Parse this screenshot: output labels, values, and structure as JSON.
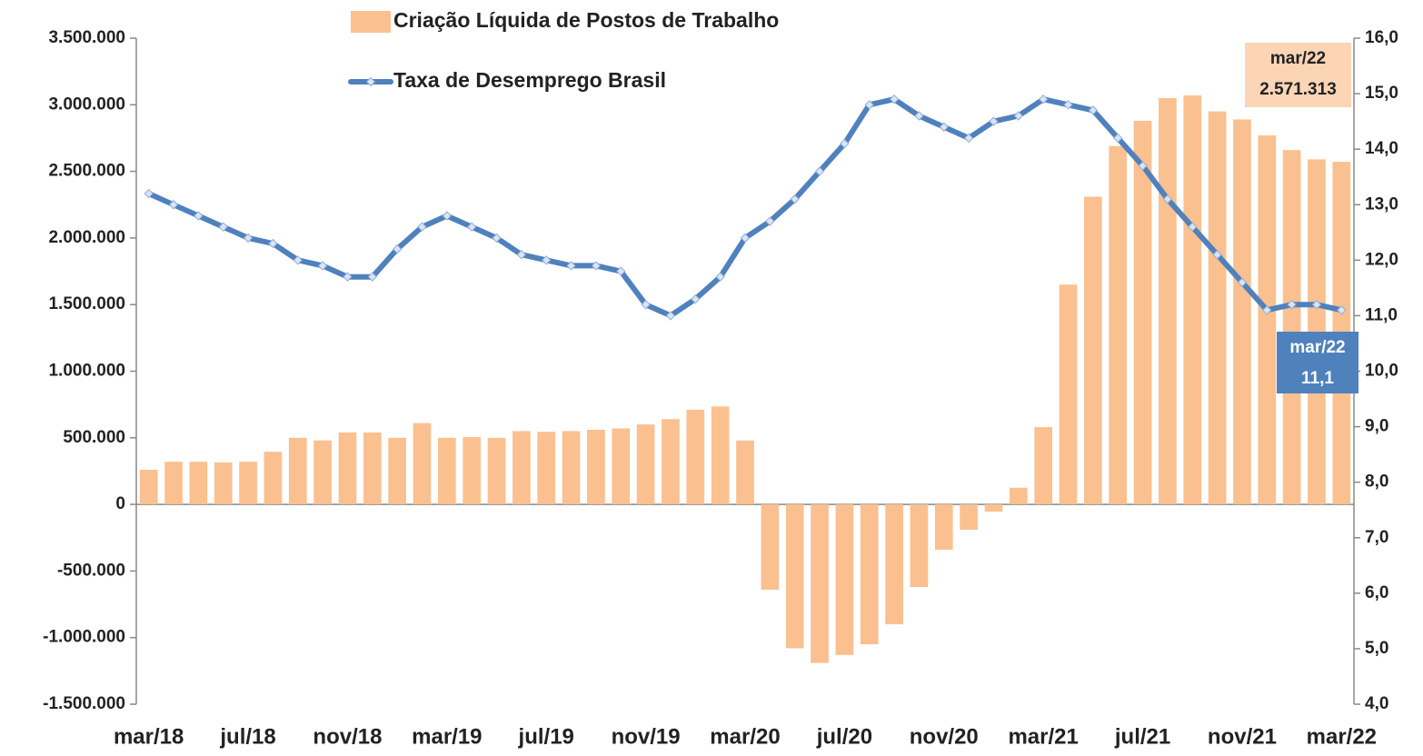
{
  "chart_data": {
    "type": "bar-line",
    "categories": [
      "mar/18",
      null,
      null,
      null,
      "jul/18",
      null,
      null,
      null,
      "nov/18",
      null,
      null,
      null,
      "mar/19",
      null,
      null,
      null,
      "jul/19",
      null,
      null,
      null,
      "nov/19",
      null,
      null,
      null,
      "mar/20",
      null,
      null,
      null,
      "jul/20",
      null,
      null,
      null,
      "nov/20",
      null,
      null,
      null,
      "mar/21",
      null,
      null,
      null,
      "jul/21",
      null,
      null,
      null,
      "nov/21",
      null,
      null,
      null,
      "mar/22"
    ],
    "series": [
      {
        "name": "Criação Líquida de Postos de Trabalho",
        "type": "bar",
        "color": "#fac090",
        "values": [
          260000,
          320000,
          320000,
          315000,
          320000,
          395000,
          500000,
          480000,
          540000,
          540000,
          500000,
          610000,
          500000,
          505000,
          500000,
          550000,
          545000,
          550000,
          560000,
          570000,
          600000,
          640000,
          710000,
          735000,
          480000,
          -640000,
          -1080000,
          -1190000,
          -1130000,
          -1050000,
          -900000,
          -620000,
          -340000,
          -190000,
          -55000,
          125000,
          580000,
          1650000,
          2310000,
          2690000,
          2880000,
          3050000,
          3070000,
          2950000,
          2890000,
          2770000,
          2660000,
          2590000,
          2571313
        ]
      },
      {
        "name": "Taxa de Desemprego Brasil",
        "type": "line",
        "color": "#4f81bd",
        "axis": "y2",
        "values": [
          13.2,
          13.0,
          12.8,
          12.6,
          12.4,
          12.3,
          12.0,
          11.9,
          11.7,
          11.7,
          12.2,
          12.6,
          12.8,
          12.6,
          12.4,
          12.1,
          12.0,
          11.9,
          11.9,
          11.8,
          11.2,
          11.0,
          11.3,
          11.7,
          12.4,
          12.7,
          13.1,
          13.6,
          14.1,
          14.8,
          14.9,
          14.6,
          14.4,
          14.2,
          14.5,
          14.6,
          14.9,
          14.8,
          14.7,
          14.2,
          13.7,
          13.1,
          12.6,
          12.1,
          11.6,
          11.1,
          11.2,
          11.2,
          11.1
        ]
      }
    ],
    "ylim": [
      -1500000,
      3500000
    ],
    "yticks": [
      {
        "value": -1500000,
        "label": "-1.500.000"
      },
      {
        "value": -1000000,
        "label": "-1.000.000"
      },
      {
        "value": -500000,
        "label": "-500.000"
      },
      0,
      {
        "value": 500000,
        "label": "500.000"
      },
      {
        "value": 1000000,
        "label": "1.000.000"
      },
      {
        "value": 1500000,
        "label": "1.500.000"
      },
      {
        "value": 2000000,
        "label": "2.000.000"
      },
      {
        "value": 2500000,
        "label": "2.500.000"
      },
      {
        "value": 3000000,
        "label": "3.000.000"
      },
      {
        "value": 3500000,
        "label": "3.500.000"
      }
    ],
    "y2lim": [
      4,
      16
    ],
    "y2ticks": [
      {
        "value": 4,
        "label": "4,0"
      },
      {
        "value": 5,
        "label": "5,0"
      },
      {
        "value": 6,
        "label": "6,0"
      },
      {
        "value": 7,
        "label": "7,0"
      },
      {
        "value": 8,
        "label": "8,0"
      },
      {
        "value": 9,
        "label": "9,0"
      },
      {
        "value": 10,
        "label": "10,0"
      },
      {
        "value": 11,
        "label": "11,0"
      },
      {
        "value": 12,
        "label": "12,0"
      },
      {
        "value": 13,
        "label": "13,0"
      },
      {
        "value": 14,
        "label": "14,0"
      },
      {
        "value": 15,
        "label": "15,0"
      },
      {
        "value": 16,
        "label": "16,0"
      }
    ],
    "annotations": [
      {
        "series": 0,
        "index": 48,
        "lines": [
          "mar/22",
          "2.571.313"
        ]
      },
      {
        "series": 1,
        "index": 48,
        "lines": [
          "mar/22",
          "11,1"
        ]
      }
    ],
    "grid": false,
    "legend": "top"
  }
}
